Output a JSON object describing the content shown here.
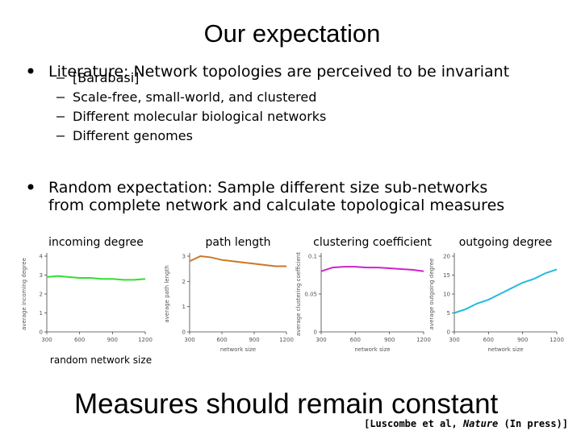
{
  "title": "Our expectation",
  "bullets": [
    {
      "lines": [
        "Literature: Network topologies are perceived to be invariant"
      ],
      "sub": [
        "[Barabasi]",
        "Scale-free, small-world, and clustered",
        "Different molecular biological networks",
        "Different genomes"
      ]
    },
    {
      "lines": [
        "Random expectation: Sample different size sub-networks",
        "from complete network and calculate topological measures"
      ]
    }
  ],
  "chart_data": [
    {
      "type": "line",
      "title": "incoming degree",
      "ylabel": "average incoming degree",
      "xlabel": "random network size",
      "x": [
        300,
        400,
        500,
        600,
        700,
        800,
        900,
        1000,
        1100,
        1200
      ],
      "values": [
        2.9,
        2.95,
        2.9,
        2.85,
        2.85,
        2.8,
        2.8,
        2.75,
        2.75,
        2.8
      ],
      "color": "#33dd33",
      "xlim": [
        300,
        1200
      ],
      "xticks": [
        300,
        600,
        900,
        1200
      ],
      "ylim": [
        0,
        4
      ],
      "yticks": [
        0,
        1,
        2,
        3,
        4
      ]
    },
    {
      "type": "line",
      "title": "path length",
      "ylabel": "average path length",
      "xlabel": "network size",
      "x": [
        300,
        400,
        500,
        600,
        700,
        800,
        900,
        1000,
        1100,
        1200
      ],
      "values": [
        2.8,
        3.0,
        2.95,
        2.85,
        2.8,
        2.75,
        2.7,
        2.65,
        2.6,
        2.6
      ],
      "color": "#cc7722",
      "xlim": [
        300,
        1200
      ],
      "xticks": [
        300,
        600,
        900,
        1200
      ],
      "ylim": [
        0,
        3
      ],
      "yticks": [
        0,
        1,
        2,
        3
      ]
    },
    {
      "type": "line",
      "title": "clustering coefficient",
      "ylabel": "average clustering coefficient",
      "xlabel": "network size",
      "x": [
        300,
        400,
        500,
        600,
        700,
        800,
        900,
        1000,
        1100,
        1200
      ],
      "values": [
        0.08,
        0.085,
        0.086,
        0.086,
        0.085,
        0.085,
        0.084,
        0.083,
        0.082,
        0.08
      ],
      "color": "#cc22cc",
      "xlim": [
        300,
        1200
      ],
      "xticks": [
        300,
        600,
        900,
        1200
      ],
      "ylim": [
        0,
        0.1
      ],
      "yticks": [
        0,
        0.05,
        0.1
      ]
    },
    {
      "type": "line",
      "title": "outgoing degree",
      "ylabel": "average outgoing degree",
      "xlabel": "network size",
      "x": [
        300,
        400,
        500,
        600,
        700,
        800,
        900,
        1000,
        1100,
        1200
      ],
      "values": [
        5,
        6,
        7.5,
        8.5,
        10,
        11.5,
        13,
        14,
        15.5,
        16.5
      ],
      "color": "#22bbdd",
      "xlim": [
        300,
        1200
      ],
      "xticks": [
        300,
        600,
        900,
        1200
      ],
      "ylim": [
        0,
        20
      ],
      "yticks": [
        0,
        5,
        10,
        15,
        20
      ]
    }
  ],
  "footer": {
    "conclusion": "Measures should remain constant",
    "citation": {
      "before": "[Luscombe et al, ",
      "italic": "Nature",
      "after": " (In press)]"
    }
  }
}
